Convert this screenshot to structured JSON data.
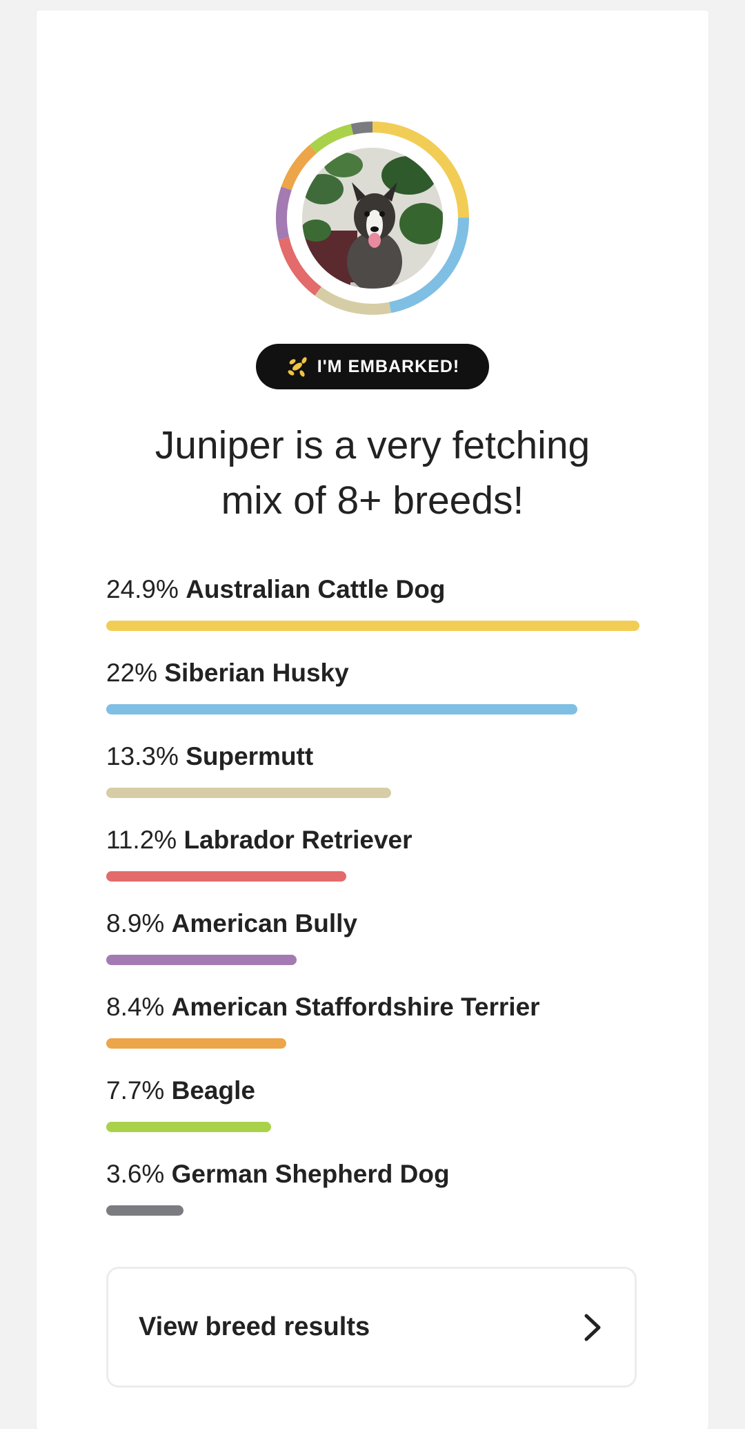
{
  "badge": {
    "label": "I'M EMBARKED!",
    "icon": "balloon-dog-icon",
    "icon_color": "#f0c444",
    "background": "#111111"
  },
  "headline": {
    "line1": "Juniper is a very fetching",
    "line2": "mix of 8+ breeds!"
  },
  "avatar": {
    "description_icon": "dog-photo",
    "ring_colors_note": "ring segments follow breed colors"
  },
  "breeds": [
    {
      "percent": "24.9%",
      "value": 24.9,
      "name": "Australian Cattle Dog",
      "color": "#f2cd55"
    },
    {
      "percent": "22%",
      "value": 22.0,
      "name": "Siberian Husky",
      "color": "#7fbfe3"
    },
    {
      "percent": "13.3%",
      "value": 13.3,
      "name": "Supermutt",
      "color": "#d6cda6"
    },
    {
      "percent": "11.2%",
      "value": 11.2,
      "name": "Labrador Retriever",
      "color": "#e36b6b"
    },
    {
      "percent": "8.9%",
      "value": 8.9,
      "name": "American Bully",
      "color": "#a37ab2"
    },
    {
      "percent": "8.4%",
      "value": 8.4,
      "name": "American Staffordshire Terrier",
      "color": "#eca548"
    },
    {
      "percent": "7.7%",
      "value": 7.7,
      "name": "Beagle",
      "color": "#a9d24a"
    },
    {
      "percent": "3.6%",
      "value": 3.6,
      "name": "German Shepherd Dog",
      "color": "#7a7c80"
    }
  ],
  "view_button": {
    "label": "View breed results",
    "icon": "chevron-right-icon"
  }
}
